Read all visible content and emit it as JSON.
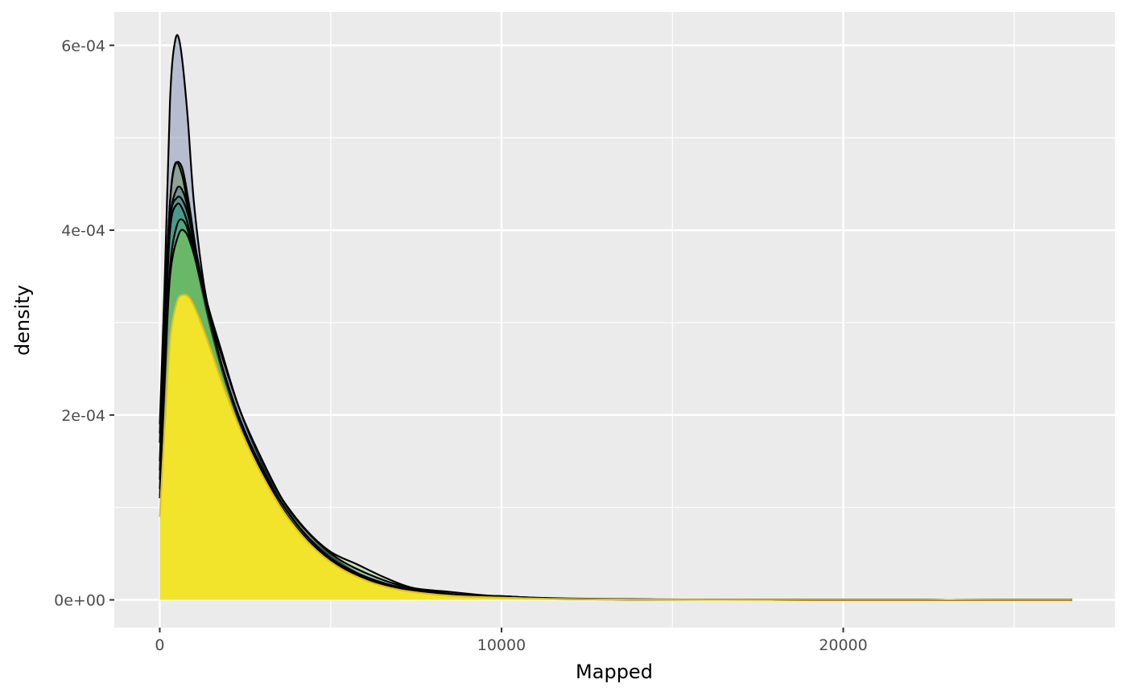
{
  "chart_data": {
    "type": "area",
    "title": "",
    "xlabel": "Mapped",
    "ylabel": "density",
    "xlim": [
      -1330,
      27950
    ],
    "ylim": [
      -3e-05,
      0.000636
    ],
    "x_ticks": [
      0,
      10000,
      20000
    ],
    "x_tick_labels": [
      "0",
      "10000",
      "20000"
    ],
    "y_ticks": [
      0,
      0.0002,
      0.0004,
      0.0006
    ],
    "y_tick_labels": [
      "0e+00",
      "2e-04",
      "4e-04",
      "6e-04"
    ],
    "grid": true,
    "legend": "none",
    "colors": {
      "panel_background": "#ebebeb",
      "grid": "#ffffff",
      "outline": "#000000"
    },
    "series": [
      {
        "fill": "#3b528b",
        "outline": "#000000",
        "points": [
          [
            0,
            0.00019
          ],
          [
            150,
            0.00035
          ],
          [
            300,
            0.00054
          ],
          [
            450,
            0.000605
          ],
          [
            600,
            0.0006
          ],
          [
            800,
            0.00053
          ],
          [
            1000,
            0.00043
          ],
          [
            1300,
            0.00034
          ],
          [
            1700,
            0.00027
          ],
          [
            2200,
            0.000205
          ],
          [
            2800,
            0.00015
          ],
          [
            3500,
            0.0001
          ],
          [
            4200,
            6.5e-05
          ],
          [
            5000,
            4.2e-05
          ],
          [
            6000,
            2.2e-05
          ],
          [
            7000,
            1.1e-05
          ],
          [
            8000,
            6e-06
          ],
          [
            9000,
            3.5e-06
          ],
          [
            10000,
            2.5e-06
          ],
          [
            11500,
            1e-06
          ],
          [
            13000,
            5e-07
          ],
          [
            15000,
            2e-07
          ],
          [
            20000,
            0
          ],
          [
            26700,
            0
          ]
        ]
      },
      {
        "fill": "#482878",
        "outline": "#000000",
        "points": [
          [
            0,
            0.00018
          ],
          [
            150,
            0.00032
          ],
          [
            300,
            0.00043
          ],
          [
            450,
            0.00047
          ],
          [
            650,
            0.000468
          ],
          [
            850,
            0.00043
          ],
          [
            1100,
            0.00037
          ],
          [
            1400,
            0.00032
          ],
          [
            1800,
            0.00027
          ],
          [
            2300,
            0.00021
          ],
          [
            2900,
            0.000155
          ],
          [
            3600,
            0.000105
          ],
          [
            4300,
            7e-05
          ],
          [
            5100,
            4.5e-05
          ],
          [
            6000,
            2.5e-05
          ],
          [
            7000,
            1.3e-05
          ],
          [
            8000,
            7e-06
          ],
          [
            9000,
            4e-06
          ],
          [
            10000,
            3e-06
          ],
          [
            11500,
            1.2e-06
          ],
          [
            13500,
            5e-07
          ],
          [
            16000,
            2e-07
          ],
          [
            20000,
            0
          ],
          [
            26700,
            0
          ]
        ]
      },
      {
        "fill": "#7ad151",
        "outline": "#000000",
        "points": [
          [
            0,
            0.00017
          ],
          [
            150,
            0.00031
          ],
          [
            300,
            0.00043
          ],
          [
            450,
            0.000472
          ],
          [
            650,
            0.00046
          ],
          [
            850,
            0.00042
          ],
          [
            1100,
            0.00036
          ],
          [
            1400,
            0.00031
          ],
          [
            1800,
            0.000255
          ],
          [
            2300,
            0.0002
          ],
          [
            2900,
            0.00015
          ],
          [
            3600,
            0.000108
          ],
          [
            4300,
            7.5e-05
          ],
          [
            5000,
            5.2e-05
          ],
          [
            5800,
            3.8e-05
          ],
          [
            6600,
            2.4e-05
          ],
          [
            7400,
            1.3e-05
          ],
          [
            8400,
            9e-06
          ],
          [
            9500,
            5e-06
          ],
          [
            10500,
            3e-06
          ],
          [
            12000,
            1.5e-06
          ],
          [
            14000,
            6e-07
          ],
          [
            17000,
            2e-07
          ],
          [
            20000,
            0
          ],
          [
            26700,
            0
          ]
        ]
      },
      {
        "fill": "#2c728e",
        "outline": "#000000",
        "points": [
          [
            0,
            0.00015
          ],
          [
            150,
            0.0003
          ],
          [
            300,
            0.00041
          ],
          [
            500,
            0.000445
          ],
          [
            700,
            0.00044
          ],
          [
            900,
            0.00041
          ],
          [
            1150,
            0.00036
          ],
          [
            1450,
            0.00031
          ],
          [
            1850,
            0.00026
          ],
          [
            2350,
            0.000205
          ],
          [
            2950,
            0.000155
          ],
          [
            3650,
            0.000105
          ],
          [
            4400,
            7e-05
          ],
          [
            5200,
            4.5e-05
          ],
          [
            6100,
            2.8e-05
          ],
          [
            7000,
            1.6e-05
          ],
          [
            8000,
            9e-06
          ],
          [
            9000,
            5e-06
          ],
          [
            10000,
            4e-06
          ],
          [
            11500,
            1.5e-06
          ],
          [
            13500,
            6e-07
          ],
          [
            16000,
            2e-07
          ],
          [
            20000,
            0
          ],
          [
            26700,
            0
          ]
        ]
      },
      {
        "fill": "#21918c",
        "outline": "#000000",
        "points": [
          [
            0,
            0.00014
          ],
          [
            150,
            0.00029
          ],
          [
            300,
            0.00041
          ],
          [
            500,
            0.000435
          ],
          [
            700,
            0.00043
          ],
          [
            900,
            0.000405
          ],
          [
            1150,
            0.00035
          ],
          [
            1450,
            0.000305
          ],
          [
            1850,
            0.00025
          ],
          [
            2350,
            0.000195
          ],
          [
            2950,
            0.000145
          ],
          [
            3650,
            0.0001
          ],
          [
            4400,
            6.5e-05
          ],
          [
            5200,
            4e-05
          ],
          [
            6100,
            2.4e-05
          ],
          [
            7000,
            1.4e-05
          ],
          [
            8000,
            8e-06
          ],
          [
            9000,
            5e-06
          ],
          [
            10000,
            4e-06
          ],
          [
            11500,
            1.5e-06
          ],
          [
            13500,
            6e-07
          ],
          [
            16000,
            2e-07
          ],
          [
            20000,
            0
          ],
          [
            26700,
            0
          ]
        ]
      },
      {
        "fill": "#28ae80",
        "outline": "#000000",
        "points": [
          [
            0,
            0.00013
          ],
          [
            150,
            0.00028
          ],
          [
            300,
            0.0004
          ],
          [
            500,
            0.000428
          ],
          [
            700,
            0.00042
          ],
          [
            900,
            0.000395
          ],
          [
            1150,
            0.00035
          ],
          [
            1450,
            0.0003
          ],
          [
            1850,
            0.000245
          ],
          [
            2350,
            0.00019
          ],
          [
            2950,
            0.00014
          ],
          [
            3650,
            9.5e-05
          ],
          [
            4400,
            6.2e-05
          ],
          [
            5200,
            3.8e-05
          ],
          [
            6100,
            2.2e-05
          ],
          [
            7000,
            1.3e-05
          ],
          [
            8000,
            8e-06
          ],
          [
            9000,
            4.5e-06
          ],
          [
            10000,
            3.5e-06
          ],
          [
            11500,
            1.5e-06
          ],
          [
            13500,
            6e-07
          ],
          [
            16000,
            2e-07
          ],
          [
            20000,
            0
          ],
          [
            26700,
            0
          ]
        ]
      },
      {
        "fill": "#5ec962",
        "outline": "#000000",
        "points": [
          [
            0,
            0.00012
          ],
          [
            150,
            0.00025
          ],
          [
            300,
            0.00036
          ],
          [
            500,
            0.000405
          ],
          [
            700,
            0.00041
          ],
          [
            900,
            0.00039
          ],
          [
            1150,
            0.00035
          ],
          [
            1450,
            0.0003
          ],
          [
            1850,
            0.000245
          ],
          [
            2350,
            0.00019
          ],
          [
            2950,
            0.00014
          ],
          [
            3650,
            9.5e-05
          ],
          [
            4400,
            6e-05
          ],
          [
            5200,
            3.6e-05
          ],
          [
            6100,
            2.1e-05
          ],
          [
            7000,
            1.2e-05
          ],
          [
            8000,
            7e-06
          ],
          [
            9000,
            4e-06
          ],
          [
            10000,
            3e-06
          ],
          [
            11500,
            1.2e-06
          ],
          [
            13500,
            5e-07
          ],
          [
            16000,
            2e-07
          ],
          [
            20000,
            0
          ],
          [
            26700,
            0
          ]
        ]
      },
      {
        "fill": "#aadc32",
        "outline": "#000000",
        "points": [
          [
            0,
            0.00011
          ],
          [
            150,
            0.00024
          ],
          [
            300,
            0.00035
          ],
          [
            550,
            0.000395
          ],
          [
            750,
            0.000398
          ],
          [
            950,
            0.00038
          ],
          [
            1200,
            0.000345
          ],
          [
            1500,
            0.000298
          ],
          [
            1900,
            0.000243
          ],
          [
            2400,
            0.000188
          ],
          [
            3000,
            0.000138
          ],
          [
            3700,
            9.3e-05
          ],
          [
            4450,
            6e-05
          ],
          [
            5250,
            3.5e-05
          ],
          [
            6150,
            2e-05
          ],
          [
            7050,
            1.1e-05
          ],
          [
            8050,
            6.5e-06
          ],
          [
            9000,
            4e-06
          ],
          [
            10000,
            3e-06
          ],
          [
            11500,
            1.2e-06
          ],
          [
            13500,
            5e-07
          ],
          [
            16000,
            2e-07
          ],
          [
            20000,
            0
          ],
          [
            26700,
            0
          ]
        ]
      },
      {
        "fill": "#fde725",
        "outline": "#e0c020",
        "points": [
          [
            0,
            9e-05
          ],
          [
            150,
            0.00019
          ],
          [
            300,
            0.00028
          ],
          [
            500,
            0.000322
          ],
          [
            700,
            0.00033
          ],
          [
            900,
            0.000325
          ],
          [
            1150,
            0.000305
          ],
          [
            1450,
            0.000275
          ],
          [
            1850,
            0.000232
          ],
          [
            2350,
            0.000185
          ],
          [
            2950,
            0.000138
          ],
          [
            3650,
            9.4e-05
          ],
          [
            4400,
            6e-05
          ],
          [
            5200,
            3.6e-05
          ],
          [
            6100,
            2e-05
          ],
          [
            7000,
            1.1e-05
          ],
          [
            8000,
            6e-06
          ],
          [
            9000,
            3.5e-06
          ],
          [
            10000,
            2.5e-06
          ],
          [
            11500,
            1e-06
          ],
          [
            13500,
            4e-07
          ],
          [
            16000,
            1e-07
          ],
          [
            20000,
            0
          ],
          [
            26700,
            0
          ]
        ]
      }
    ]
  }
}
